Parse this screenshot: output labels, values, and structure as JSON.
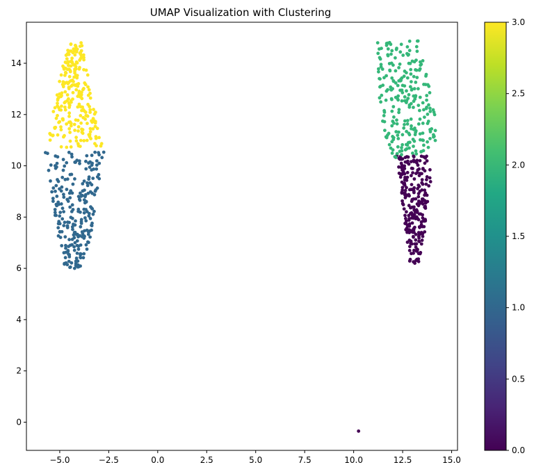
{
  "chart_data": {
    "type": "scatter",
    "title": "UMAP Visualization with Clustering",
    "xlabel": "",
    "ylabel": "",
    "xlim": [
      -6.7,
      15.3
    ],
    "ylim": [
      -1.1,
      15.6
    ],
    "x_ticks": [
      -5.0,
      -2.5,
      0.0,
      2.5,
      5.0,
      7.5,
      10.0,
      12.5,
      15.0
    ],
    "x_tick_labels": [
      "−5.0",
      "−2.5",
      "0.0",
      "2.5",
      "5.0",
      "7.5",
      "10.0",
      "12.5",
      "15.0"
    ],
    "y_ticks": [
      0,
      2,
      4,
      6,
      8,
      10,
      12,
      14
    ],
    "y_tick_labels": [
      "0",
      "2",
      "4",
      "6",
      "8",
      "10",
      "12",
      "14"
    ],
    "grid": false,
    "colorbar": {
      "colormap": "viridis",
      "range": [
        0.0,
        3.0
      ],
      "ticks": [
        0.0,
        0.5,
        1.0,
        1.5,
        2.0,
        2.5,
        3.0
      ],
      "tick_labels": [
        "0.0",
        "0.5",
        "1.0",
        "1.5",
        "2.0",
        "2.5",
        "3.0"
      ]
    },
    "clusters": [
      {
        "label": 0,
        "color": "#440154",
        "point_count": 250,
        "x_range": [
          12.2,
          14.1
        ],
        "y_range": [
          6.2,
          10.4
        ]
      },
      {
        "label": 1,
        "color": "#31688e",
        "point_count": 250,
        "x_range": [
          -5.8,
          -2.7
        ],
        "y_range": [
          6.0,
          10.6
        ]
      },
      {
        "label": 2,
        "color": "#35b779",
        "point_count": 250,
        "x_range": [
          11.0,
          14.3
        ],
        "y_range": [
          10.3,
          14.9
        ]
      },
      {
        "label": 3,
        "color": "#fde725",
        "point_count": 250,
        "x_range": [
          -5.7,
          -2.8
        ],
        "y_range": [
          10.7,
          14.8
        ]
      }
    ],
    "outliers": [
      {
        "x": 10.25,
        "y": -0.35,
        "label": 0
      }
    ]
  }
}
